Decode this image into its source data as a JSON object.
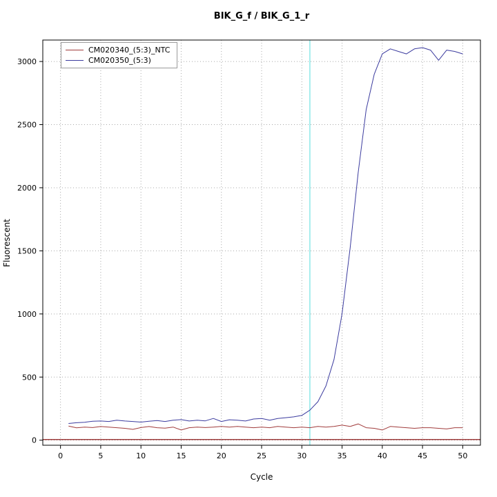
{
  "title": "BIK_G_f / BIK_G_1_r",
  "axes": {
    "x_label": "Cycle",
    "y_label": "Fluorescent"
  },
  "legend": {
    "items": [
      {
        "label": "CM020340_(5:3)_NTC",
        "color": "#a03a3a"
      },
      {
        "label": "CM020350_(5:3)",
        "color": "#3a3a9e"
      }
    ]
  },
  "chart_data": {
    "type": "line",
    "title": "BIK_G_f / BIK_G_1_r",
    "xlabel": "Cycle",
    "ylabel": "Fluorescent",
    "xlim": [
      -2.2,
      52.2
    ],
    "ylim": [
      -40,
      3170
    ],
    "x_ticks": [
      0,
      5,
      10,
      15,
      20,
      25,
      30,
      35,
      40,
      45,
      50
    ],
    "y_ticks": [
      0,
      500,
      1000,
      1500,
      2000,
      2500,
      3000
    ],
    "grid": "dotted",
    "grid_color": "#a8a8a8",
    "x": [
      1,
      2,
      3,
      4,
      5,
      6,
      7,
      8,
      9,
      10,
      11,
      12,
      13,
      14,
      15,
      16,
      17,
      18,
      19,
      20,
      21,
      22,
      23,
      24,
      25,
      26,
      27,
      28,
      29,
      30,
      31,
      32,
      33,
      34,
      35,
      36,
      37,
      38,
      39,
      40,
      41,
      42,
      43,
      44,
      45,
      46,
      47,
      48,
      49,
      50
    ],
    "series": [
      {
        "name": "CM020340_(5:3)_NTC",
        "color": "#a03a3a",
        "values": [
          112,
          98,
          104,
          100,
          108,
          104,
          99,
          94,
          86,
          100,
          108,
          99,
          95,
          104,
          81,
          99,
          104,
          100,
          104,
          109,
          104,
          109,
          104,
          99,
          104,
          99,
          109,
          104,
          99,
          104,
          99,
          109,
          104,
          109,
          119,
          109,
          129,
          99,
          94,
          81,
          109,
          104,
          99,
          94,
          99,
          99,
          94,
          89,
          99,
          99
        ]
      },
      {
        "name": "CM020350_(5:3)",
        "color": "#3a3a9e",
        "values": [
          132,
          138,
          142,
          150,
          152,
          148,
          158,
          152,
          148,
          143,
          150,
          155,
          148,
          158,
          163,
          152,
          158,
          153,
          172,
          148,
          162,
          158,
          152,
          168,
          172,
          158,
          172,
          178,
          185,
          196,
          238,
          305,
          430,
          640,
          1000,
          1520,
          2120,
          2620,
          2900,
          3060,
          3100,
          3080,
          3060,
          3100,
          3110,
          3090,
          3010,
          3090,
          3080,
          3060
        ]
      }
    ],
    "threshold_line": {
      "y": 5,
      "color": "#8b1a1a"
    },
    "vertical_line": {
      "x": 31,
      "color": "#6fe3e3"
    },
    "legend_position": "top-left"
  }
}
